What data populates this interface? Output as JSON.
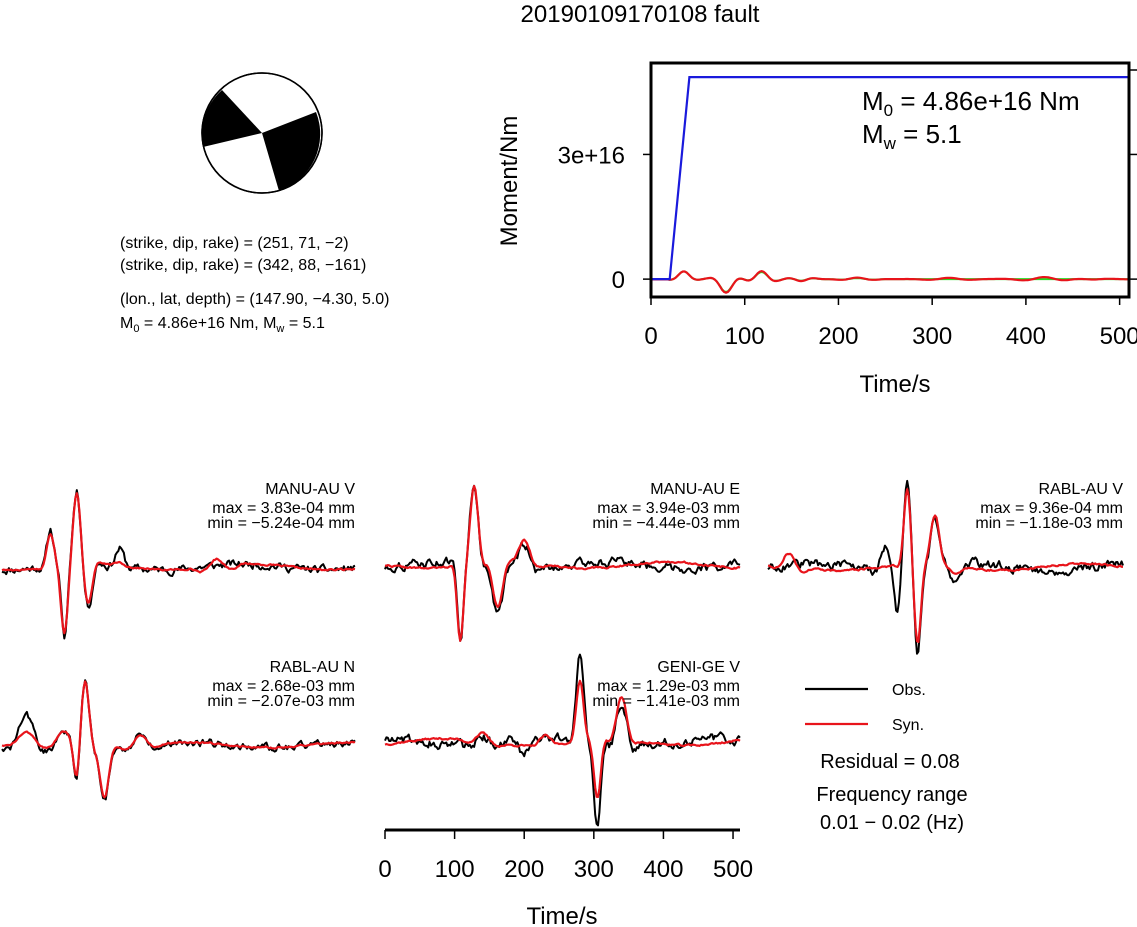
{
  "title": "20190109170108 fault",
  "focal": {
    "lines": [
      "(strike, dip, rake) = (251, 71, −2)",
      "(strike, dip, rake) = (342, 88, −161)",
      "(lon., lat, depth) = (147.90, −4.30, 5.0)"
    ],
    "m0_label": "M",
    "m0_sub": "0",
    "m0_text": " = 4.86e+16 Nm, M",
    "mw_sub": "w",
    "mw_text": " = 5.1"
  },
  "colors": {
    "obs": "#000000",
    "syn": "#e8141b",
    "moment": "#1a1adc",
    "stf": "#22dd22",
    "beach": "#000000"
  },
  "chart_data": [
    {
      "type": "line",
      "name": "moment-rate",
      "xlabel": "Time/s",
      "ylabel": "Moment/Nm",
      "xlim": [
        0,
        510
      ],
      "ylim": [
        -4300000000000000.0,
        5.2e+16
      ],
      "x_ticks": [
        0,
        100,
        200,
        300,
        400,
        500
      ],
      "x_tick_labels": [
        "0",
        "100",
        "200",
        "300",
        "400",
        "500"
      ],
      "y_ticks": [
        0,
        3e+16
      ],
      "y_tick_labels": [
        "0",
        "3e+16"
      ],
      "annotation": {
        "m0_pre": "M",
        "m0_sub": "0",
        "m0_post": " = 4.86e+16 Nm",
        "mw_pre": "M",
        "mw_sub": "w",
        "mw_post": " = 5.1"
      },
      "series": [
        {
          "color": "blue",
          "x": [
            0,
            20,
            41,
            510
          ],
          "y": [
            0,
            0,
            4.86e+16,
            4.86e+16
          ]
        }
      ],
      "wavelets": {
        "green_base": [
          [
            35,
            0.6,
            45,
            8
          ],
          [
            80,
            -1.0,
            50,
            9
          ],
          [
            118,
            0.55,
            40,
            10
          ],
          [
            160,
            -0.12,
            30,
            12
          ],
          [
            220,
            0.08,
            40,
            15
          ]
        ],
        "red_base": [
          [
            35,
            0.6,
            45,
            8
          ],
          [
            80,
            -1.05,
            50,
            9
          ],
          [
            118,
            0.62,
            40,
            10
          ],
          [
            160,
            -0.15,
            30,
            12
          ],
          [
            220,
            0.12,
            40,
            15
          ],
          [
            318,
            0.1,
            50,
            20
          ],
          [
            420,
            0.16,
            50,
            22
          ],
          [
            470,
            -0.04,
            40,
            25
          ]
        ],
        "amplitude_Nm": 3100000000000000.0
      }
    },
    {
      "type": "waveform-panels",
      "xlabel": "Time/s",
      "xlim": [
        0,
        510
      ],
      "x_ticks": [
        0,
        100,
        200,
        300,
        400,
        500
      ],
      "x_tick_labels": [
        "0",
        "100",
        "200",
        "300",
        "400",
        "500"
      ],
      "stations": [
        {
          "name": "MANU-AU V",
          "max": "max = 3.83e-04 mm",
          "min": "min = −5.24e-04 mm",
          "obs": [
            [
              70,
              0.5,
              50,
              6
            ],
            [
              90,
              -1.0,
              50,
              5
            ],
            [
              108,
              1.0,
              50,
              7
            ],
            [
              125,
              -0.55,
              50,
              8
            ],
            [
              170,
              0.25,
              60,
              8
            ]
          ],
          "syn": [
            [
              70,
              0.45,
              50,
              7
            ],
            [
              90,
              -0.9,
              50,
              6
            ],
            [
              108,
              0.95,
              50,
              7
            ],
            [
              125,
              -0.5,
              50,
              8
            ],
            [
              170,
              0.05,
              60,
              8
            ],
            [
              310,
              0.1,
              50,
              20
            ]
          ]
        },
        {
          "name": "MANU-AU E",
          "max": "max = 3.94e-03 mm",
          "min": "min = −4.44e-03 mm",
          "obs": [
            [
              108,
              -0.95,
              50,
              5
            ],
            [
              128,
              1.0,
              50,
              8
            ],
            [
              162,
              -0.6,
              60,
              10
            ],
            [
              200,
              0.3,
              60,
              12
            ]
          ],
          "syn": [
            [
              108,
              -0.9,
              50,
              5
            ],
            [
              128,
              0.97,
              50,
              8
            ],
            [
              162,
              -0.55,
              60,
              10
            ],
            [
              200,
              0.28,
              60,
              12
            ]
          ]
        },
        {
          "name": "RABL-AU V",
          "max": "max = 9.36e-04 mm",
          "min": "min = −1.18e-03 mm",
          "obs": [
            [
              170,
              0.3,
              60,
              10
            ],
            [
              185,
              -0.5,
              60,
              5
            ],
            [
              200,
              1.0,
              50,
              6
            ],
            [
              215,
              -1.0,
              50,
              6
            ],
            [
              240,
              0.6,
              60,
              8
            ],
            [
              270,
              -0.2,
              60,
              10
            ]
          ],
          "syn": [
            [
              30,
              0.15,
              50,
              15
            ],
            [
              200,
              0.9,
              50,
              6
            ],
            [
              215,
              -0.95,
              50,
              6
            ],
            [
              240,
              0.6,
              60,
              8
            ],
            [
              270,
              -0.1,
              60,
              10
            ]
          ]
        },
        {
          "name": "RABL-AU N",
          "max": "max = 2.68e-03 mm",
          "min": "min = −2.07e-03 mm",
          "obs": [
            [
              35,
              0.4,
              70,
              18
            ],
            [
              90,
              0.2,
              70,
              16
            ],
            [
              120,
              1.0,
              50,
              8
            ],
            [
              108,
              -0.5,
              50,
              5
            ],
            [
              148,
              -0.8,
              60,
              8
            ],
            [
              200,
              0.15,
              60,
              15
            ]
          ],
          "syn": [
            [
              35,
              0.15,
              70,
              18
            ],
            [
              90,
              0.2,
              70,
              16
            ],
            [
              120,
              1.0,
              50,
              8
            ],
            [
              108,
              -0.45,
              50,
              5
            ],
            [
              148,
              -0.75,
              60,
              8
            ],
            [
              200,
              0.15,
              60,
              15
            ]
          ]
        },
        {
          "name": "GENI-GE V",
          "max": "max = 1.29e-03 mm",
          "min": "min = −1.41e-03 mm",
          "obs": [
            [
              140,
              0.1,
              60,
              15
            ],
            [
              200,
              -0.15,
              60,
              12
            ],
            [
              280,
              1.0,
              50,
              7
            ],
            [
              305,
              -1.0,
              50,
              6
            ],
            [
              340,
              0.5,
              60,
              10
            ]
          ],
          "syn": [
            [
              140,
              0.1,
              60,
              15
            ],
            [
              230,
              0.1,
              60,
              12
            ],
            [
              280,
              0.7,
              50,
              7
            ],
            [
              305,
              -0.7,
              50,
              6
            ],
            [
              340,
              0.5,
              60,
              10
            ]
          ]
        }
      ]
    }
  ],
  "legend": {
    "obs_label": "Obs.",
    "syn_label": "Syn."
  },
  "residual": "Residual = 0.08",
  "freq_title": "Frequency range",
  "freq_value": "0.01 − 0.02 (Hz)"
}
